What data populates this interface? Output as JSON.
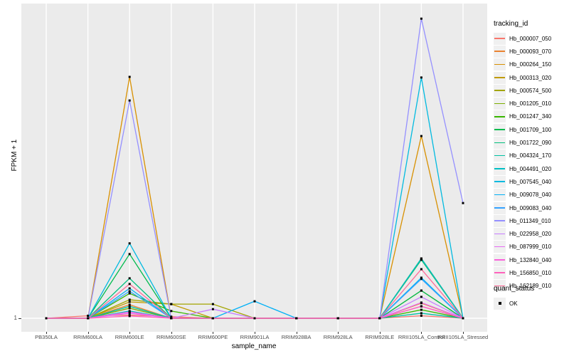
{
  "figure": {
    "background": "#FFFFFF",
    "panel_background": "#EBEBEB",
    "grid_color": "#FFFFFF",
    "marker_color": "#000000"
  },
  "y_axis": {
    "title": "FPKM + 1",
    "tick_labels": [
      "1"
    ],
    "scale": "log, only value 1 labeled"
  },
  "x_axis": {
    "title": "sample_name"
  },
  "legend": {
    "tracking_title": "tracking_id",
    "quant_title": "quant_status",
    "quant_items": [
      {
        "label": "OK",
        "key": "black-square"
      }
    ]
  },
  "chart_data": {
    "type": "line",
    "title": "",
    "xlabel": "sample_name",
    "ylabel": "FPKM + 1",
    "grid": "vertical major gridlines per sample, horizontal gridline at y=1",
    "legend_position": "right",
    "marker": "small black square at every point (quant_status = OK)",
    "values_unit": "fraction of panel height above the y=1 baseline (log y-axis shows only tick '1'; absolute FPKM values not labeled in figure)",
    "categories": [
      "PB350LA",
      "RRIM600LA",
      "RRIM600LE",
      "RRIM600SE",
      "RRIM600PE",
      "RRIM901LA",
      "RRIM928BA",
      "RRIM928LA",
      "RRIM928LE",
      "RRII105LA_Control",
      "RRII105LA_Stressed"
    ],
    "series": [
      {
        "name": "Hb_000007_050",
        "color": "#F8766D",
        "values": [
          0,
          0.008,
          0.01,
          0.005,
          0,
          0,
          0,
          0,
          0,
          0.008,
          0
        ]
      },
      {
        "name": "Hb_000093_070",
        "color": "#EA8331",
        "values": [
          0,
          0,
          0.043,
          0,
          0,
          0,
          0,
          0,
          0,
          0.048,
          0
        ]
      },
      {
        "name": "Hb_000264_150",
        "color": "#D89000",
        "values": [
          0,
          0,
          0.767,
          0,
          0,
          0,
          0,
          0,
          0,
          0.579,
          0
        ]
      },
      {
        "name": "Hb_000313_020",
        "color": "#C09B00",
        "values": [
          0,
          0,
          0.052,
          0.045,
          0,
          0,
          0,
          0,
          0,
          0.19,
          0
        ]
      },
      {
        "name": "Hb_000574_500",
        "color": "#A3A500",
        "values": [
          0,
          0,
          0.059,
          0.045,
          0.045,
          0,
          0,
          0,
          0,
          0.186,
          0
        ]
      },
      {
        "name": "Hb_001205_010",
        "color": "#7CAE00",
        "values": [
          0,
          0,
          0.032,
          0,
          0,
          0,
          0,
          0,
          0,
          0.088,
          0
        ]
      },
      {
        "name": "Hb_001247_340",
        "color": "#39B600",
        "values": [
          0,
          0,
          0.079,
          0.023,
          0,
          0,
          0,
          0,
          0,
          0.027,
          0
        ]
      },
      {
        "name": "Hb_001709_100",
        "color": "#00BB4E",
        "values": [
          0,
          0,
          0.204,
          0,
          0,
          0,
          0,
          0,
          0,
          0.088,
          0
        ]
      },
      {
        "name": "Hb_001722_090",
        "color": "#00BF7D",
        "values": [
          0,
          0,
          0.127,
          0,
          0,
          0,
          0,
          0,
          0,
          0.186,
          0
        ]
      },
      {
        "name": "Hb_004324_170",
        "color": "#00C1A3",
        "values": [
          0,
          0,
          0.038,
          0,
          0,
          0,
          0,
          0,
          0,
          0.016,
          0
        ]
      },
      {
        "name": "Hb_004491_020",
        "color": "#00BFC4",
        "values": [
          0,
          0,
          0.023,
          0,
          0,
          0,
          0,
          0,
          0,
          0.19,
          0
        ]
      },
      {
        "name": "Hb_007545_040",
        "color": "#00BAE0",
        "values": [
          0,
          0,
          0.238,
          0,
          0,
          0,
          0,
          0,
          0,
          0.765,
          0
        ]
      },
      {
        "name": "Hb_009078_040",
        "color": "#00B0F6",
        "values": [
          0,
          0,
          0.095,
          0,
          0,
          0.054,
          0,
          0,
          0,
          0.129,
          0
        ]
      },
      {
        "name": "Hb_009083_040",
        "color": "#35A2FF",
        "values": [
          0,
          0,
          0.086,
          0,
          0,
          0,
          0,
          0,
          0,
          0.125,
          0
        ]
      },
      {
        "name": "Hb_011349_010",
        "color": "#9590FF",
        "values": [
          0,
          0,
          0.692,
          0,
          0,
          0,
          0,
          0,
          0,
          0.952,
          0.366
        ]
      },
      {
        "name": "Hb_022958_020",
        "color": "#C77CFF",
        "values": [
          0,
          0,
          0.02,
          0,
          0.029,
          0,
          0,
          0,
          0,
          0.068,
          0
        ]
      },
      {
        "name": "Hb_087999_010",
        "color": "#E76BF3",
        "values": [
          0,
          0,
          0.016,
          0,
          0,
          0,
          0,
          0,
          0,
          0.05,
          0
        ]
      },
      {
        "name": "Hb_132840_040",
        "color": "#FA62DB",
        "values": [
          0,
          0,
          0.02,
          0,
          0,
          0,
          0,
          0,
          0,
          0.038,
          0
        ]
      },
      {
        "name": "Hb_156850_010",
        "color": "#FF62BC",
        "values": [
          0,
          0,
          0.007,
          0,
          0,
          0,
          0,
          0,
          0,
          0.038,
          0
        ]
      },
      {
        "name": "Hb_162189_010",
        "color": "#FF6A98",
        "values": [
          0,
          0,
          0.109,
          0,
          0,
          0,
          0,
          0,
          0,
          0.156,
          0
        ]
      }
    ]
  }
}
